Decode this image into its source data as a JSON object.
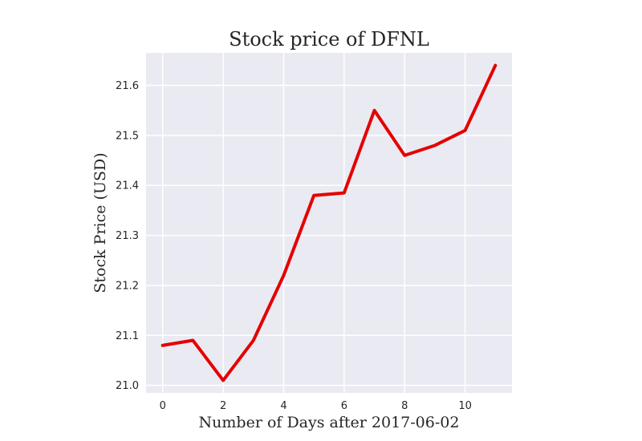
{
  "chart_data": {
    "type": "line",
    "title": "Stock price of DFNL",
    "xlabel": "Number of Days after 2017-06-02",
    "ylabel": "Stock Price (USD)",
    "x": [
      0,
      1,
      2,
      3,
      4,
      5,
      6,
      7,
      8,
      9,
      10,
      11
    ],
    "series": [
      {
        "color": "#e50000",
        "values": [
          21.08,
          21.09,
          21.01,
          21.09,
          21.22,
          21.38,
          21.385,
          21.55,
          21.46,
          21.48,
          21.51,
          21.64
        ]
      }
    ],
    "xlim": [
      -0.55,
      11.55
    ],
    "ylim": [
      20.985,
      21.665
    ],
    "xticks": [
      0,
      2,
      4,
      6,
      8,
      10
    ],
    "yticks": [
      21.0,
      21.1,
      21.2,
      21.3,
      21.4,
      21.5,
      21.6
    ],
    "xtick_labels": [
      "0",
      "2",
      "4",
      "6",
      "8",
      "10"
    ],
    "ytick_labels": [
      "21.0",
      "21.1",
      "21.2",
      "21.3",
      "21.4",
      "21.5",
      "21.6"
    ],
    "grid": true,
    "legend": "none"
  }
}
